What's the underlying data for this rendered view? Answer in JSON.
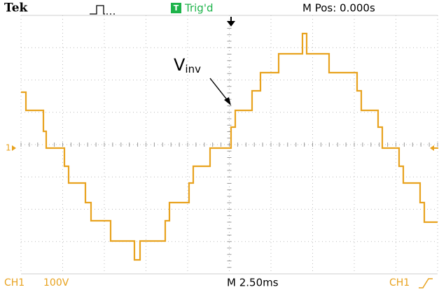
{
  "header": {
    "brand": "Tek",
    "trigger_icon": "T",
    "trigger_status": "Trig'd",
    "position": "M Pos: 0.000s"
  },
  "annotation": {
    "label": "V",
    "subscript": "inv"
  },
  "channel_marker": "1",
  "footer": {
    "channel": "CH1",
    "scale": "100V",
    "timebase": "M 2.50ms",
    "trigger_source": "CH1"
  }
}
